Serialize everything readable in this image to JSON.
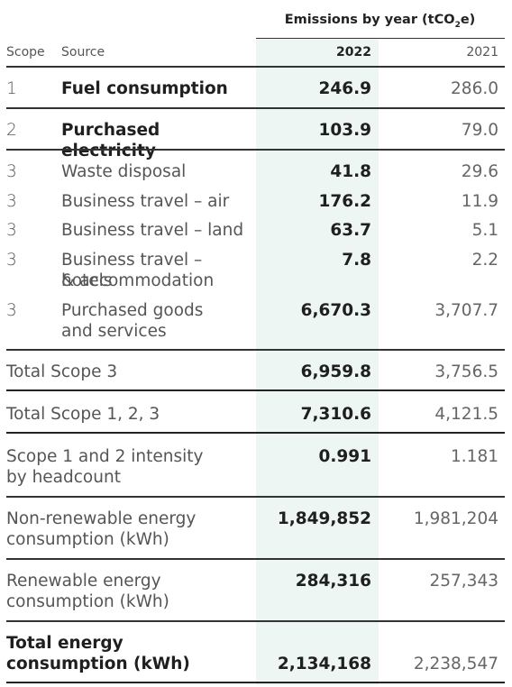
{
  "header": {
    "title_main": "Emissions by year (tCO",
    "title_sub": "2",
    "title_end": "e)",
    "col_scope": "Scope",
    "col_source": "Source",
    "year_primary": "2022",
    "year_secondary": "2021"
  },
  "rows": [
    {
      "scope": "1",
      "source": "Fuel consumption",
      "v2022": "246.9",
      "v2021": "286.0"
    },
    {
      "scope": "2",
      "source": "Purchased electricity",
      "v2022": "103.9",
      "v2021": "79.0"
    },
    {
      "scope": "3",
      "source": "Waste disposal",
      "v2022": "41.8",
      "v2021": "29.6"
    },
    {
      "scope": "3",
      "source": "Business travel – air",
      "v2022": "176.2",
      "v2021": "11.9"
    },
    {
      "scope": "3",
      "source": "Business travel – land",
      "v2022": "63.7",
      "v2021": "5.1"
    },
    {
      "scope": "3",
      "source_line1": "Business travel – hotels",
      "source_line2": "& accommodation",
      "v2022": "7.8",
      "v2021": "2.2"
    },
    {
      "scope": "3",
      "source_line1": "Purchased goods",
      "source_line2": "and services",
      "v2022": "6,670.3",
      "v2021": "3,707.7"
    }
  ],
  "totals": [
    {
      "label": "Total Scope 3",
      "v2022": "6,959.8",
      "v2021": "3,756.5"
    },
    {
      "label": "Total Scope 1, 2, 3",
      "v2022": "7,310.6",
      "v2021": "4,121.5"
    },
    {
      "label_line1": "Scope 1 and 2 intensity",
      "label_line2": "by headcount",
      "v2022": "0.991",
      "v2021": "1.181"
    },
    {
      "label_line1": "Non-renewable energy",
      "label_line2": "consumption (kWh)",
      "v2022": "1,849,852",
      "v2021": "1,981,204"
    },
    {
      "label_line1": "Renewable energy",
      "label_line2": "consumption (kWh)",
      "v2022": "284,316",
      "v2021": "257,343"
    },
    {
      "label_line1": "Total energy",
      "label_line2": "consumption (kWh)",
      "v2022": "2,134,168",
      "v2021": "2,238,547"
    }
  ]
}
